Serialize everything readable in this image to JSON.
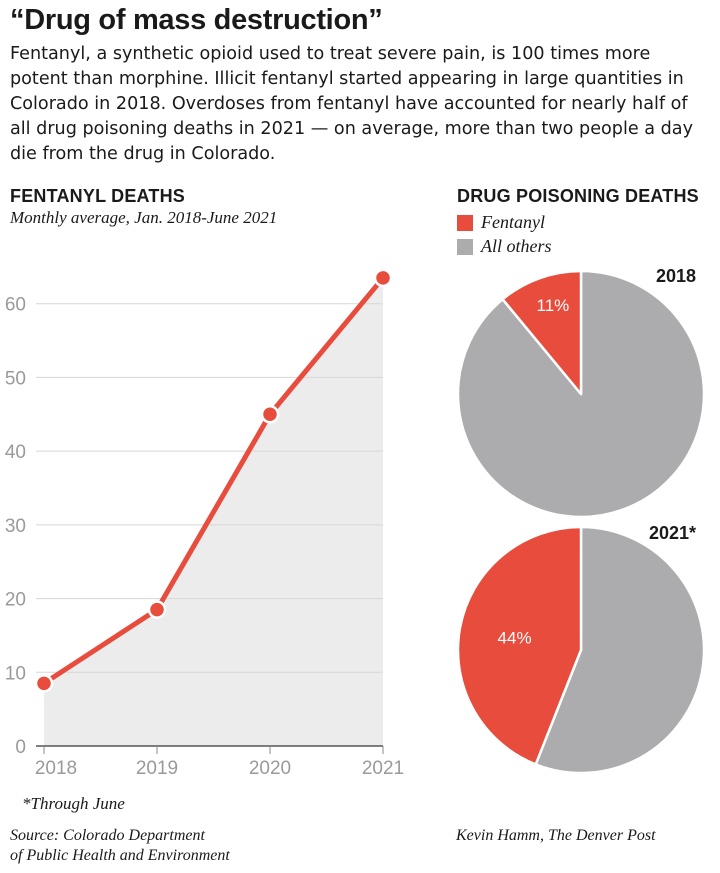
{
  "header": {
    "title": "“Drug of mass destruction”",
    "intro": "Fentanyl, a synthetic opioid used to treat severe pain, is 100 times more potent than morphine. Illicit fentanyl started appearing in large quantities in Colorado in 2018. Overdoses from fentanyl have accounted for nearly half of all drug poisoning deaths in 2021 — on average, more than two people a day die from the drug in Colorado."
  },
  "colors": {
    "fentanyl": "#e84c3d",
    "others": "#acacae",
    "area": "#ececec",
    "grid": "#d7d7d7",
    "axis_text": "#9a9a9a"
  },
  "chart_data": [
    {
      "type": "area",
      "title": "FENTANYL DEATHS",
      "subtitle": "Monthly average, Jan. 2018-June 2021",
      "categories": [
        "2018",
        "2019",
        "2020",
        "2021"
      ],
      "values": [
        8.5,
        18.5,
        45,
        63.5
      ],
      "ylim": [
        0,
        70
      ],
      "yticks": [
        "0",
        "10",
        "20",
        "30",
        "40",
        "50",
        "60"
      ],
      "grid": true
    },
    {
      "type": "pie",
      "title": "DRUG POISONING DEATHS",
      "legend": [
        "Fentanyl",
        "All others"
      ],
      "charts": [
        {
          "label": "2018",
          "slices": [
            {
              "name": "Fentanyl",
              "value": 11,
              "label": "11%"
            },
            {
              "name": "All others",
              "value": 89
            }
          ]
        },
        {
          "label": "2021*",
          "slices": [
            {
              "name": "Fentanyl",
              "value": 44,
              "label": "44%"
            },
            {
              "name": "All others",
              "value": 56
            }
          ]
        }
      ]
    }
  ],
  "footer": {
    "footnote": "*Through June",
    "source_line1": "Source: Colorado Department",
    "source_line2": "of Public Health and Environment",
    "credit": "Kevin Hamm, The Denver Post"
  }
}
